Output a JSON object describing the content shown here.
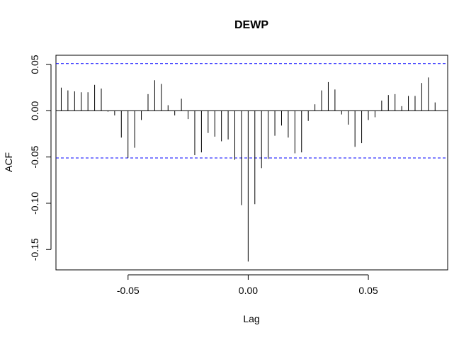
{
  "chart_data": {
    "type": "bar",
    "title": "DEWP",
    "xlabel": "Lag",
    "ylabel": "ACF",
    "xlim": [
      -0.08,
      0.083
    ],
    "ylim": [
      -0.172,
      0.06
    ],
    "x_ticks": [
      -0.05,
      0.0,
      0.05
    ],
    "x_tick_labels": [
      "-0.05",
      "0.00",
      "0.05"
    ],
    "y_ticks": [
      -0.15,
      -0.1,
      -0.05,
      0.0,
      0.05
    ],
    "y_tick_labels": [
      "-0.15",
      "-0.10",
      "-0.05",
      "0.00",
      "0.05"
    ],
    "confidence_band": 0.051,
    "confidence_color": "#0000ff",
    "grid": false,
    "lag_start": -0.0778,
    "lag_step": 0.002778,
    "values": [
      0.025,
      0.022,
      0.021,
      0.02,
      0.02,
      0.028,
      0.024,
      -0.001,
      -0.005,
      -0.029,
      -0.051,
      -0.04,
      -0.01,
      0.018,
      0.033,
      0.029,
      0.006,
      -0.005,
      0.013,
      -0.009,
      -0.048,
      -0.045,
      -0.024,
      -0.028,
      -0.033,
      -0.031,
      -0.053,
      -0.102,
      -0.163,
      -0.101,
      -0.062,
      -0.052,
      -0.027,
      -0.016,
      -0.029,
      -0.046,
      -0.045,
      -0.011,
      0.007,
      0.022,
      0.031,
      0.023,
      -0.004,
      -0.015,
      -0.039,
      -0.035,
      -0.01,
      -0.007,
      0.011,
      0.017,
      0.018,
      0.005,
      0.016,
      0.016,
      0.03,
      0.036,
      0.009
    ]
  }
}
